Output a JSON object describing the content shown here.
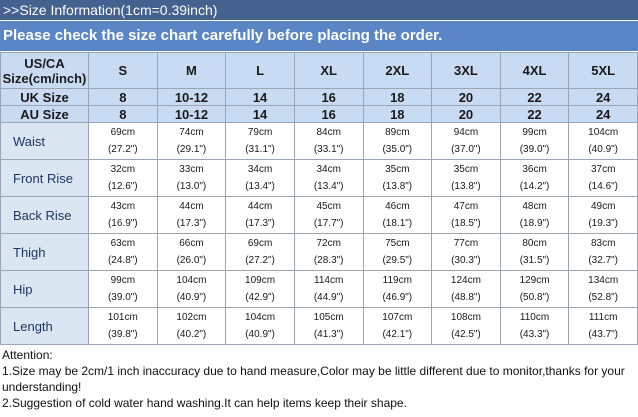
{
  "header": {
    "title": ">>Size Information(1cm=0.39inch)",
    "notice": "Please check the size chart carefully before placing the order."
  },
  "table": {
    "corner": [
      "US/CA",
      "Size(cm/inch)"
    ],
    "sizes": [
      "S",
      "M",
      "L",
      "XL",
      "2XL",
      "3XL",
      "4XL",
      "5XL"
    ],
    "alt_rows": [
      {
        "label": "UK Size",
        "values": [
          "8",
          "10-12",
          "14",
          "16",
          "18",
          "20",
          "22",
          "24"
        ]
      },
      {
        "label": "AU Size",
        "values": [
          "8",
          "10-12",
          "14",
          "16",
          "18",
          "20",
          "22",
          "24"
        ]
      }
    ],
    "rows": [
      {
        "label": "Waist",
        "cells": [
          [
            "69cm",
            "(27.2\")"
          ],
          [
            "74cm",
            "(29.1\")"
          ],
          [
            "79cm",
            "(31.1\")"
          ],
          [
            "84cm",
            "(33.1\")"
          ],
          [
            "89cm",
            "(35.0\")"
          ],
          [
            "94cm",
            "(37.0\")"
          ],
          [
            "99cm",
            "(39.0\")"
          ],
          [
            "104cm",
            "(40.9\")"
          ]
        ]
      },
      {
        "label": "Front Rise",
        "cells": [
          [
            "32cm",
            "(12.6\")"
          ],
          [
            "33cm",
            "(13.0\")"
          ],
          [
            "34cm",
            "(13.4\")"
          ],
          [
            "34cm",
            "(13.4\")"
          ],
          [
            "35cm",
            "(13.8\")"
          ],
          [
            "35cm",
            "(13.8\")"
          ],
          [
            "36cm",
            "(14.2\")"
          ],
          [
            "37cm",
            "(14.6\")"
          ]
        ]
      },
      {
        "label": "Back Rise",
        "cells": [
          [
            "43cm",
            "(16.9\")"
          ],
          [
            "44cm",
            "(17.3\")"
          ],
          [
            "44cm",
            "(17.3\")"
          ],
          [
            "45cm",
            "(17.7\")"
          ],
          [
            "46cm",
            "(18.1\")"
          ],
          [
            "47cm",
            "(18.5\")"
          ],
          [
            "48cm",
            "(18.9\")"
          ],
          [
            "49cm",
            "(19.3\")"
          ]
        ]
      },
      {
        "label": "Thigh",
        "cells": [
          [
            "63cm",
            "(24.8\")"
          ],
          [
            "66cm",
            "(26.0\")"
          ],
          [
            "69cm",
            "(27.2\")"
          ],
          [
            "72cm",
            "(28.3\")"
          ],
          [
            "75cm",
            "(29.5\")"
          ],
          [
            "77cm",
            "(30.3\")"
          ],
          [
            "80cm",
            "(31.5\")"
          ],
          [
            "83cm",
            "(32.7\")"
          ]
        ]
      },
      {
        "label": "Hip",
        "cells": [
          [
            "99cm",
            "(39.0\")"
          ],
          [
            "104cm",
            "(40.9\")"
          ],
          [
            "109cm",
            "(42.9\")"
          ],
          [
            "114cm",
            "(44.9\")"
          ],
          [
            "119cm",
            "(46.9\")"
          ],
          [
            "124cm",
            "(48.8\")"
          ],
          [
            "129cm",
            "(50.8\")"
          ],
          [
            "134cm",
            "(52.8\")"
          ]
        ]
      },
      {
        "label": "Length",
        "cells": [
          [
            "101cm",
            "(39.8\")"
          ],
          [
            "102cm",
            "(40.2\")"
          ],
          [
            "104cm",
            "(40.9\")"
          ],
          [
            "105cm",
            "(41.3\")"
          ],
          [
            "107cm",
            "(42.1\")"
          ],
          [
            "108cm",
            "(42.5\")"
          ],
          [
            "110cm",
            "(43.3\")"
          ],
          [
            "111cm",
            "(43.7\")"
          ]
        ]
      }
    ]
  },
  "attention": {
    "title": "Attention:",
    "notes": [
      "1.Size may be 2cm/1 inch inaccuracy due to hand measure,Color may be little different due to monitor,thanks for your understanding!",
      "2.Suggestion of cold water hand washing.It can help items keep their shape."
    ]
  }
}
